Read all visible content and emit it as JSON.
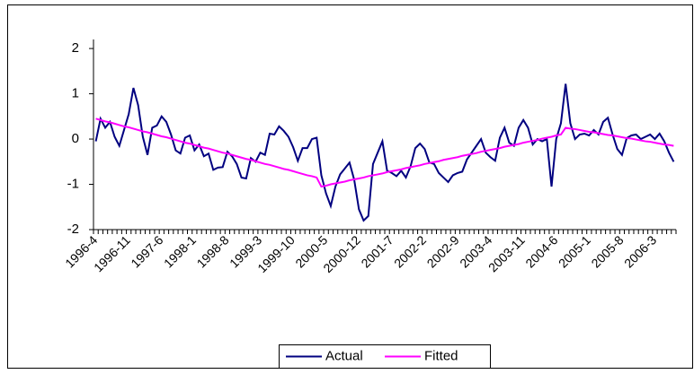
{
  "chart_data": {
    "type": "line",
    "categories": [
      "1996-4",
      null,
      null,
      null,
      null,
      null,
      null,
      "1996-11",
      null,
      null,
      null,
      null,
      null,
      null,
      "1997-6",
      null,
      null,
      null,
      null,
      null,
      null,
      "1998-1",
      null,
      null,
      null,
      null,
      null,
      null,
      "1998-8",
      null,
      null,
      null,
      null,
      null,
      null,
      "1999-3",
      null,
      null,
      null,
      null,
      null,
      null,
      "1999-10",
      null,
      null,
      null,
      null,
      null,
      null,
      "2000-5",
      null,
      null,
      null,
      null,
      null,
      null,
      "2000-12",
      null,
      null,
      null,
      null,
      null,
      null,
      "2001-7",
      null,
      null,
      null,
      null,
      null,
      null,
      "2002-2",
      null,
      null,
      null,
      null,
      null,
      null,
      "2002-9",
      null,
      null,
      null,
      null,
      null,
      null,
      "2003-4",
      null,
      null,
      null,
      null,
      null,
      null,
      "2003-11",
      null,
      null,
      null,
      null,
      null,
      null,
      "2004-6",
      null,
      null,
      null,
      null,
      null,
      null,
      "2005-1",
      null,
      null,
      null,
      null,
      null,
      null,
      "2005-8",
      null,
      null,
      null,
      null,
      null,
      null,
      "2006-3",
      null,
      null,
      null,
      null
    ],
    "series": [
      {
        "name": "Actual",
        "color": "#000080",
        "values": [
          -0.05,
          0.45,
          0.25,
          0.38,
          0.05,
          -0.15,
          0.2,
          0.55,
          1.13,
          0.75,
          0.05,
          -0.35,
          0.25,
          0.3,
          0.5,
          0.38,
          0.1,
          -0.25,
          -0.32,
          0.03,
          0.08,
          -0.25,
          -0.12,
          -0.38,
          -0.32,
          -0.68,
          -0.63,
          -0.62,
          -0.28,
          -0.38,
          -0.55,
          -0.85,
          -0.87,
          -0.42,
          -0.5,
          -0.3,
          -0.35,
          0.12,
          0.1,
          0.28,
          0.18,
          0.05,
          -0.18,
          -0.48,
          -0.2,
          -0.2,
          0.0,
          0.03,
          -0.8,
          -1.2,
          -1.48,
          -1.05,
          -0.78,
          -0.65,
          -0.52,
          -0.9,
          -1.55,
          -1.8,
          -1.7,
          -0.55,
          -0.3,
          -0.05,
          -0.7,
          -0.75,
          -0.82,
          -0.7,
          -0.85,
          -0.6,
          -0.2,
          -0.1,
          -0.22,
          -0.52,
          -0.55,
          -0.75,
          -0.85,
          -0.95,
          -0.8,
          -0.75,
          -0.72,
          -0.45,
          -0.3,
          -0.15,
          0.0,
          -0.3,
          -0.4,
          -0.48,
          0.03,
          0.25,
          -0.08,
          -0.15,
          0.25,
          0.42,
          0.25,
          -0.12,
          0.0,
          -0.05,
          0.0,
          -1.05,
          0.0,
          0.35,
          1.22,
          0.35,
          0.0,
          0.1,
          0.12,
          0.08,
          0.2,
          0.1,
          0.38,
          0.47,
          0.1,
          -0.22,
          -0.35,
          0.02,
          0.08,
          0.1,
          0.0,
          0.05,
          0.1,
          0.0,
          0.12,
          -0.05,
          -0.3,
          -0.5
        ]
      },
      {
        "name": "Fitted",
        "color": "#ff00ff",
        "values": [
          0.45,
          0.42,
          0.39,
          0.37,
          0.34,
          0.31,
          0.28,
          0.26,
          0.23,
          0.2,
          0.17,
          0.15,
          0.12,
          0.09,
          0.06,
          0.04,
          0.01,
          -0.02,
          -0.05,
          -0.08,
          -0.1,
          -0.13,
          -0.16,
          -0.19,
          -0.21,
          -0.24,
          -0.27,
          -0.3,
          -0.32,
          -0.35,
          -0.38,
          -0.41,
          -0.44,
          -0.46,
          -0.49,
          -0.52,
          -0.55,
          -0.57,
          -0.6,
          -0.63,
          -0.66,
          -0.68,
          -0.71,
          -0.74,
          -0.77,
          -0.8,
          -0.82,
          -0.85,
          -1.05,
          -1.03,
          -1.0,
          -0.98,
          -0.96,
          -0.94,
          -0.91,
          -0.89,
          -0.87,
          -0.85,
          -0.82,
          -0.8,
          -0.78,
          -0.76,
          -0.73,
          -0.71,
          -0.69,
          -0.67,
          -0.64,
          -0.62,
          -0.6,
          -0.58,
          -0.55,
          -0.53,
          -0.51,
          -0.49,
          -0.46,
          -0.44,
          -0.42,
          -0.4,
          -0.37,
          -0.35,
          -0.33,
          -0.31,
          -0.28,
          -0.26,
          -0.24,
          -0.22,
          -0.2,
          -0.17,
          -0.15,
          -0.13,
          -0.11,
          -0.08,
          -0.06,
          -0.04,
          -0.02,
          0.01,
          0.03,
          0.05,
          0.08,
          0.1,
          0.25,
          0.23,
          0.22,
          0.2,
          0.18,
          0.16,
          0.15,
          0.13,
          0.11,
          0.09,
          0.08,
          0.06,
          0.04,
          0.02,
          0.01,
          -0.01,
          -0.03,
          -0.05,
          -0.06,
          -0.08,
          -0.1,
          -0.12,
          -0.13,
          -0.15
        ]
      }
    ],
    "ylim": [
      -2,
      2.2
    ],
    "yticks": [
      -2,
      -1,
      0,
      1,
      2
    ],
    "legend": "bottom"
  }
}
